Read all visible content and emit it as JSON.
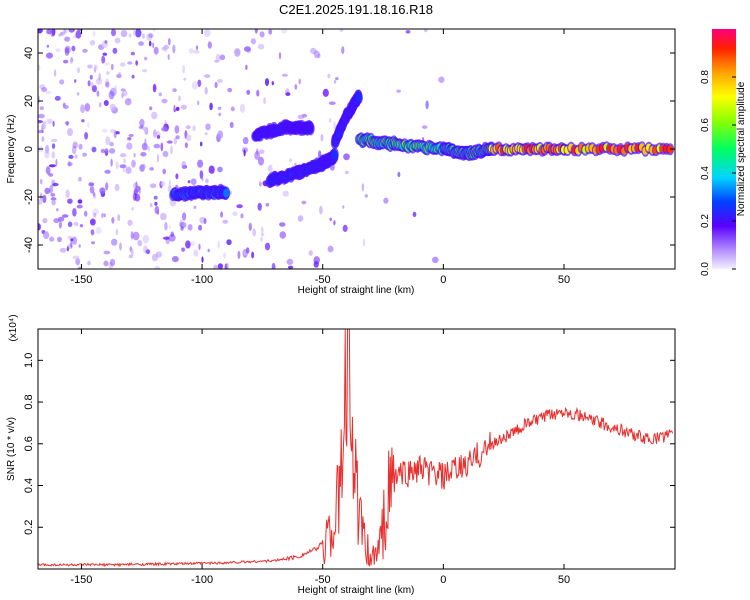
{
  "figure_title": "C2E1.2025.191.18.16.R18",
  "chart_data": [
    {
      "type": "heatmap",
      "xlabel": "Height of straight line (km)",
      "ylabel": "Frequency (Hz)",
      "xlim": [
        -168,
        96
      ],
      "ylim": [
        -50,
        50
      ],
      "xticks": [
        -150,
        -100,
        -50,
        0,
        50
      ],
      "yticks": [
        -40,
        -20,
        0,
        20,
        40
      ],
      "colorbar": {
        "label": "Normalized spectral amplitude",
        "range": [
          0.0,
          1.0
        ],
        "ticks": [
          0.0,
          0.2,
          0.4,
          0.6,
          0.8
        ],
        "tick_labels": [
          "0.0",
          "0.2",
          "0.4",
          "0.6",
          "0.8"
        ]
      },
      "features": [
        {
          "x": [
            -112,
            -100,
            -90
          ],
          "y": [
            -19,
            -18,
            -18
          ],
          "amplitude": 0.35
        },
        {
          "x": [
            -72,
            -60,
            -50,
            -45
          ],
          "y": [
            -13,
            -10,
            -6,
            -3
          ],
          "amplitude": 0.3
        },
        {
          "x": [
            -78,
            -65,
            -55
          ],
          "y": [
            6,
            9,
            9
          ],
          "amplitude": 0.25
        },
        {
          "x": [
            -45,
            -40,
            -35
          ],
          "y": [
            3,
            14,
            22
          ],
          "amplitude": 0.3
        },
        {
          "x": [
            -35,
            -20,
            0,
            10,
            20
          ],
          "y": [
            4,
            2,
            0,
            -2,
            0
          ],
          "amplitude": 0.6
        },
        {
          "x": [
            20,
            50,
            94
          ],
          "y": [
            0,
            0,
            0
          ],
          "amplitude": 0.95
        }
      ]
    },
    {
      "type": "line",
      "xlabel": "Height of straight line (km)",
      "ylabel": "SNR (10 * v/v)",
      "y_multiplier": "(x10⁴)",
      "xlim": [
        -168,
        96
      ],
      "ylim": [
        0,
        1.15
      ],
      "xticks": [
        -150,
        -100,
        -50,
        0,
        50
      ],
      "yticks": [
        0.2,
        0.4,
        0.6,
        0.8,
        1.0
      ],
      "ytick_labels": [
        "0.2",
        "0.4",
        "0.6",
        "0.8",
        "1.0"
      ],
      "series_color": "#e8302e",
      "x": [
        -168,
        -140,
        -110,
        -90,
        -70,
        -60,
        -52,
        -46,
        -43,
        -41,
        -39,
        -37,
        -35,
        -33,
        -31,
        -29,
        -27,
        -25,
        -23,
        -20,
        -15,
        -10,
        -5,
        0,
        5,
        10,
        15,
        20,
        25,
        30,
        35,
        40,
        45,
        50,
        55,
        60,
        65,
        70,
        75,
        80,
        85,
        90,
        95
      ],
      "y": [
        0.02,
        0.02,
        0.025,
        0.03,
        0.04,
        0.06,
        0.1,
        0.2,
        0.35,
        0.7,
        1.12,
        0.5,
        0.25,
        0.12,
        0.06,
        0.05,
        0.08,
        0.2,
        0.35,
        0.45,
        0.46,
        0.48,
        0.46,
        0.44,
        0.47,
        0.5,
        0.55,
        0.6,
        0.63,
        0.66,
        0.7,
        0.72,
        0.74,
        0.76,
        0.74,
        0.72,
        0.7,
        0.68,
        0.66,
        0.64,
        0.62,
        0.63,
        0.65
      ]
    }
  ]
}
